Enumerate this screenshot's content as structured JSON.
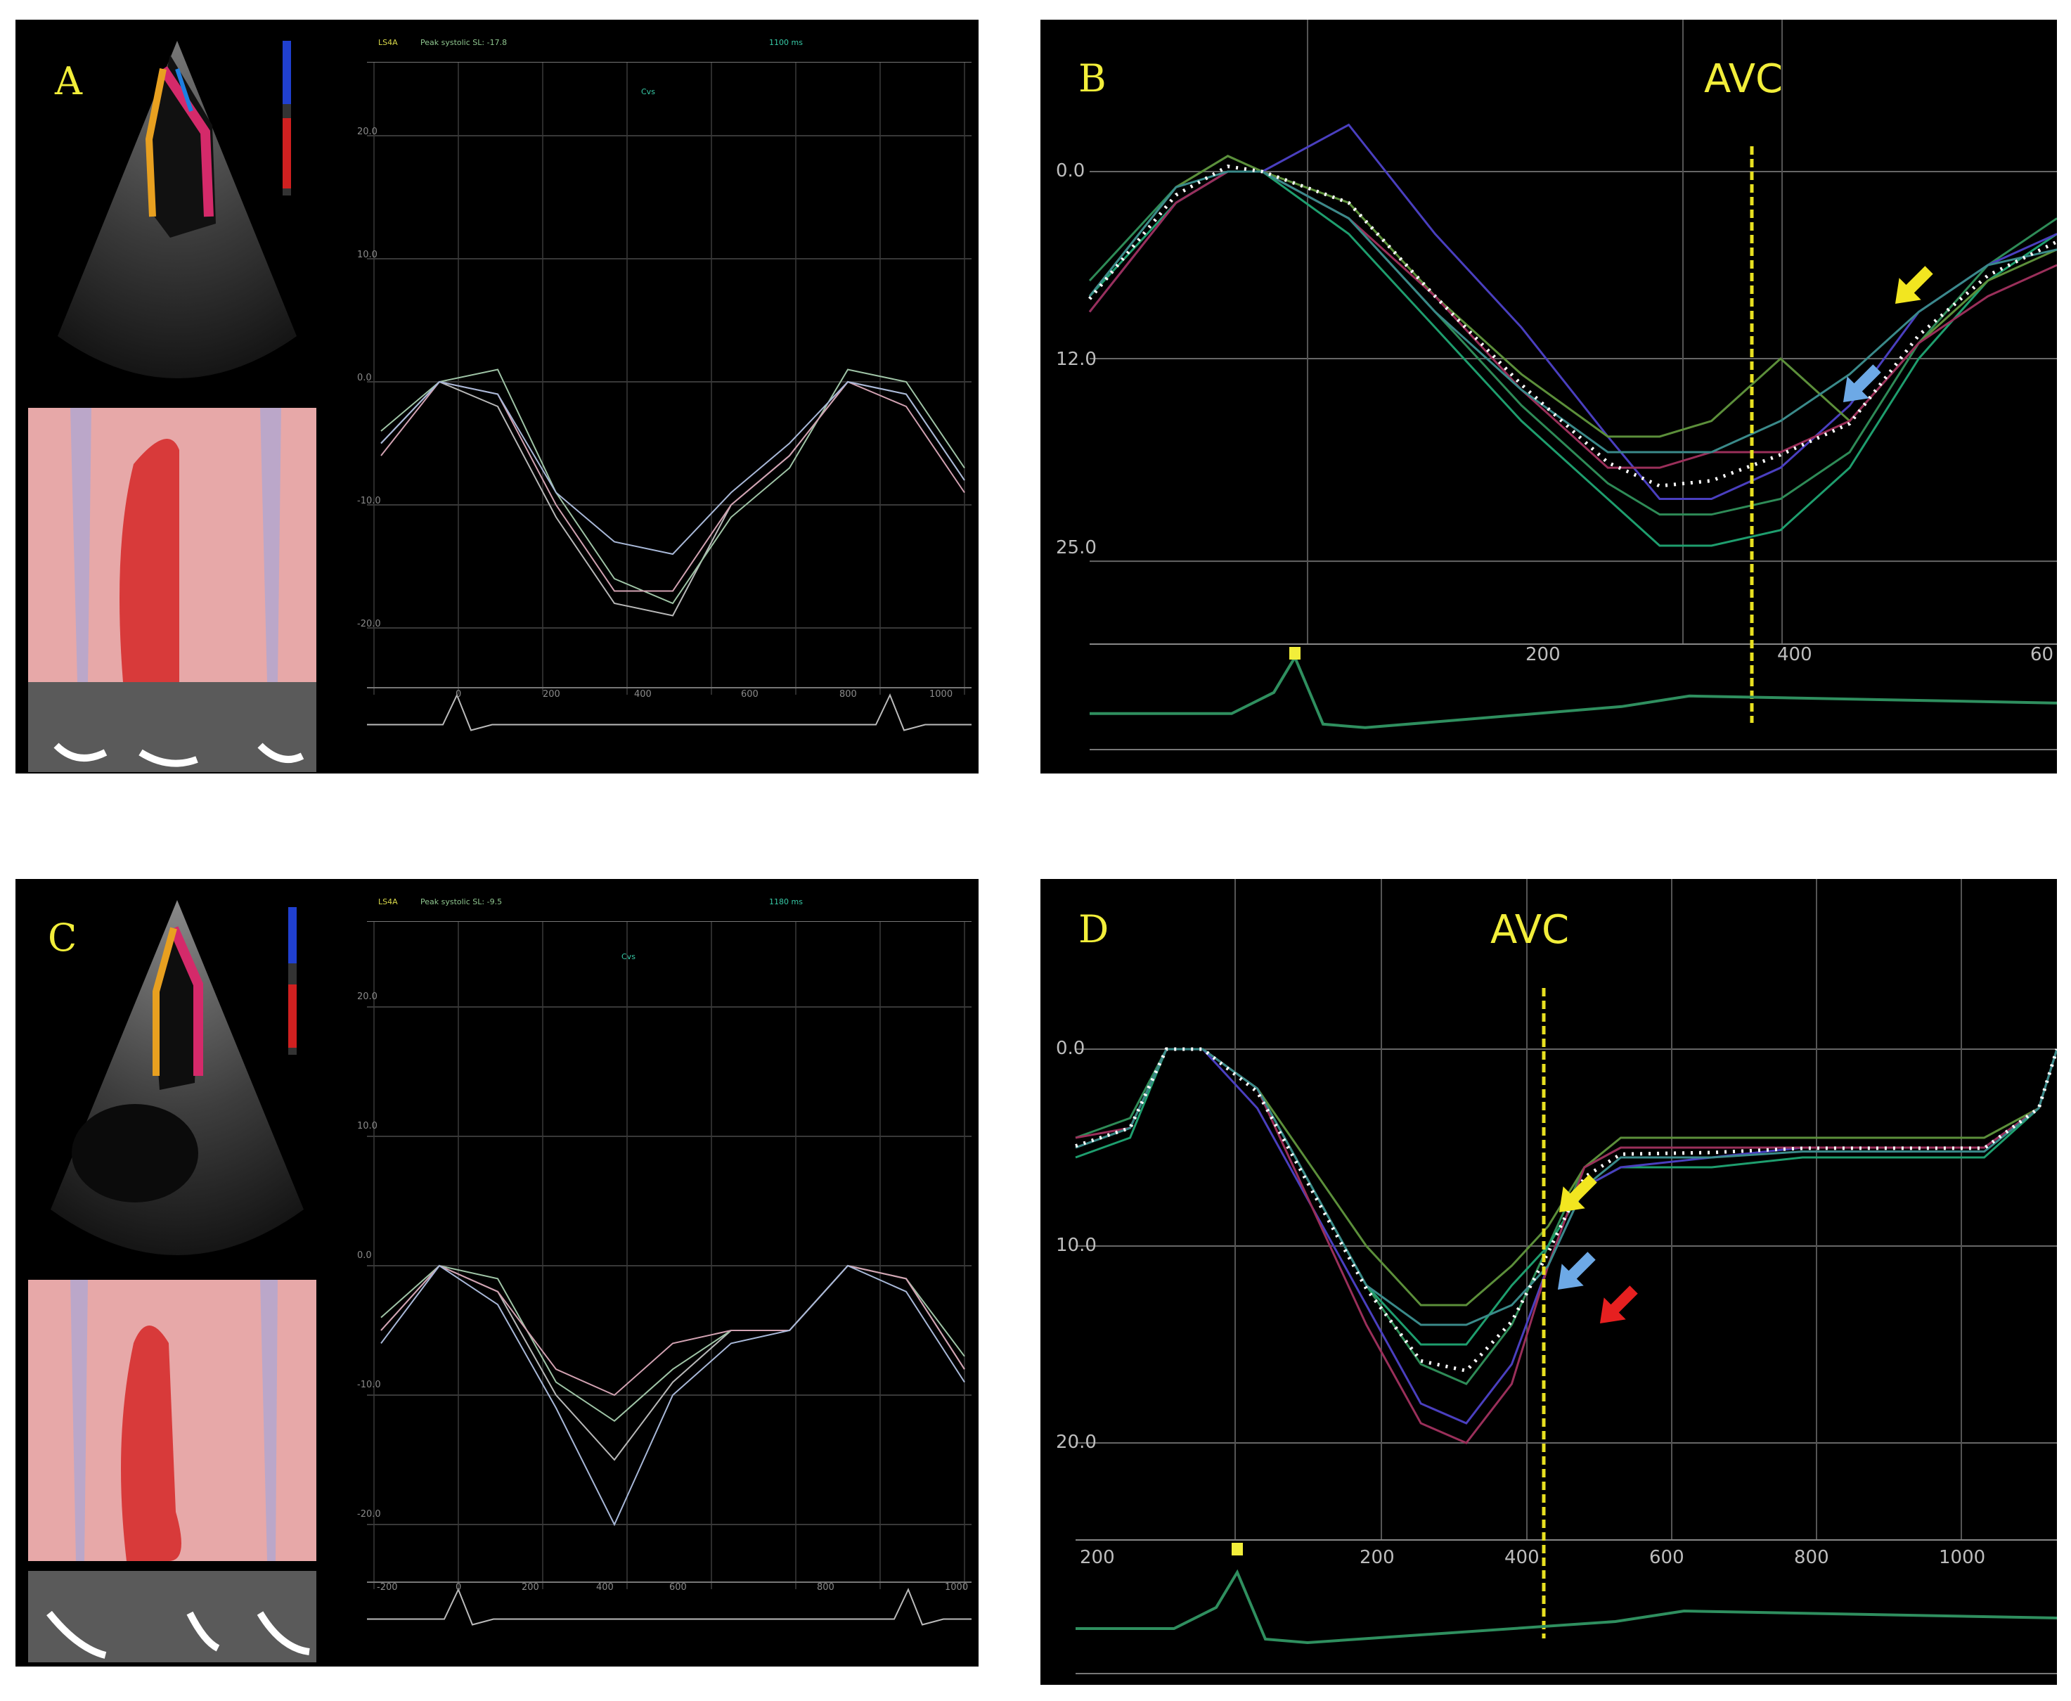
{
  "panels": {
    "A": {
      "label": "A",
      "header": {
        "strain": "LS4A",
        "peak": "Peak systolic SL: -17.8",
        "time": "1100 ms",
        "avc": "Cvs"
      },
      "yticks": [
        "20.0",
        "10.0",
        "0.0",
        "-10.0",
        "-20.0"
      ],
      "xticks": [
        "0",
        "200",
        "400",
        "600",
        "800",
        "1000"
      ]
    },
    "B": {
      "label": "B",
      "avc_label": "AVC",
      "yticks": [
        "0.0",
        "12.0",
        "25.0"
      ],
      "xticks": [
        "200",
        "400",
        "60"
      ]
    },
    "C": {
      "label": "C",
      "header": {
        "strain": "LS4A",
        "peak": "Peak systolic SL: -9.5",
        "time": "1180 ms",
        "avc": "Cvs"
      },
      "yticks": [
        "20.0",
        "10.0",
        "0.0",
        "-10.0",
        "-20.0"
      ],
      "xticks": [
        "-200",
        "0",
        "200",
        "400",
        "600",
        "800",
        "1000"
      ]
    },
    "D": {
      "label": "D",
      "avc_label": "AVC",
      "yticks": [
        "0.0",
        "10.0",
        "20.0"
      ],
      "xticks": [
        "200",
        "200",
        "400",
        "600",
        "800",
        "1000"
      ]
    }
  },
  "colors": {
    "yellow_arrow": "#f2e620",
    "blue_arrow": "#6da9e6",
    "red_arrow": "#e62020",
    "avc_line": "#e8e020",
    "ecg": "#2f8f5f"
  },
  "chart_data": [
    {
      "panel": "B",
      "type": "line",
      "ylabel": "",
      "xlabel": "",
      "y_ticks": [
        0.0,
        12.0,
        25.0
      ],
      "x_ticks": [
        200,
        400
      ],
      "avc_ms": 360,
      "series": [
        {
          "x": [
            0,
            50,
            80,
            100,
            150,
            200,
            250,
            300,
            330,
            360,
            400,
            440,
            480,
            520,
            560
          ],
          "values": [
            7,
            1,
            -1,
            0,
            3,
            9,
            15,
            20,
            22,
            22,
            21,
            18,
            11,
            6,
            3
          ]
        },
        {
          "x": [
            0,
            50,
            80,
            100,
            150,
            200,
            250,
            300,
            330,
            360,
            400,
            440,
            480,
            520,
            560
          ],
          "values": [
            8,
            2,
            0,
            0,
            4,
            10,
            16,
            21,
            24,
            24,
            23,
            19,
            12,
            7,
            4
          ]
        },
        {
          "x": [
            0,
            50,
            80,
            100,
            150,
            200,
            250,
            300,
            330,
            360,
            400,
            440,
            480,
            520,
            560
          ],
          "values": [
            9,
            2,
            0,
            0,
            -3,
            4,
            10,
            17,
            21,
            21,
            19,
            15,
            9,
            6,
            4
          ]
        },
        {
          "x": [
            0,
            50,
            80,
            100,
            150,
            200,
            250,
            300,
            330,
            360,
            400,
            440,
            480,
            520,
            560
          ],
          "values": [
            8,
            1,
            -1,
            0,
            2,
            8,
            13,
            17,
            17,
            16,
            12,
            16,
            11,
            7,
            5
          ]
        },
        {
          "x": [
            0,
            50,
            80,
            100,
            150,
            200,
            250,
            300,
            330,
            360,
            400,
            440,
            480,
            520,
            560
          ],
          "values": [
            9,
            2,
            0,
            0,
            3,
            8,
            14,
            19,
            19,
            18,
            18,
            16,
            11,
            8,
            6
          ]
        },
        {
          "x": [
            0,
            50,
            80,
            100,
            150,
            200,
            250,
            300,
            330,
            360,
            400,
            440,
            480,
            520,
            560
          ],
          "values": [
            8,
            1,
            0,
            0,
            3,
            9,
            14,
            18,
            18,
            18,
            16,
            13,
            9,
            6,
            5
          ]
        }
      ]
    },
    {
      "panel": "D",
      "type": "line",
      "ylabel": "",
      "xlabel": "",
      "y_ticks": [
        0.0,
        10.0,
        20.0
      ],
      "x_ticks": [
        200,
        400,
        600,
        800,
        1000
      ],
      "avc_ms": 430,
      "series": [
        {
          "x": [
            0,
            60,
            100,
            140,
            200,
            260,
            320,
            380,
            430,
            480,
            520,
            560,
            600,
            700,
            800,
            900,
            1000,
            1060,
            1080
          ],
          "values": [
            4.5,
            3.5,
            0,
            0,
            2,
            7,
            12,
            16,
            17,
            14,
            10,
            6,
            5,
            5,
            5,
            5,
            5,
            3,
            0
          ]
        },
        {
          "x": [
            0,
            60,
            100,
            140,
            200,
            260,
            320,
            380,
            430,
            480,
            520,
            560,
            600,
            700,
            800,
            900,
            1000,
            1060,
            1080
          ],
          "values": [
            5.5,
            4.5,
            0,
            0,
            2,
            7,
            12,
            15,
            15,
            12,
            10,
            7,
            6,
            6,
            5.5,
            5.5,
            5.5,
            3,
            0
          ]
        },
        {
          "x": [
            0,
            60,
            100,
            140,
            200,
            260,
            320,
            380,
            430,
            480,
            520,
            560,
            600,
            700,
            800,
            900,
            1000,
            1060,
            1080
          ],
          "values": [
            5,
            4,
            0,
            0,
            3,
            8,
            13,
            18,
            19,
            16,
            11,
            7,
            6,
            5.5,
            5,
            5,
            5,
            3,
            0
          ]
        },
        {
          "x": [
            0,
            60,
            100,
            140,
            200,
            260,
            320,
            380,
            430,
            480,
            520,
            560,
            600,
            700,
            800,
            900,
            1000,
            1060,
            1080
          ],
          "values": [
            5,
            4,
            0,
            0,
            2,
            6,
            10,
            13,
            13,
            11,
            9,
            6,
            4.5,
            4.5,
            4.5,
            4.5,
            4.5,
            3,
            0
          ]
        },
        {
          "x": [
            0,
            60,
            100,
            140,
            200,
            260,
            320,
            380,
            430,
            480,
            520,
            560,
            600,
            700,
            800,
            900,
            1000,
            1060,
            1080
          ],
          "values": [
            4.5,
            4,
            0,
            0,
            2,
            8,
            14,
            19,
            20,
            17,
            11,
            6,
            5,
            5,
            5,
            5,
            5,
            3,
            0
          ]
        },
        {
          "x": [
            0,
            60,
            100,
            140,
            200,
            260,
            320,
            380,
            430,
            480,
            520,
            560,
            600,
            700,
            800,
            900,
            1000,
            1060,
            1080
          ],
          "values": [
            5,
            4,
            0,
            0,
            2,
            7,
            12,
            14,
            14,
            13,
            11,
            7,
            5.5,
            5.5,
            5.2,
            5.2,
            5.2,
            3,
            0
          ]
        }
      ]
    },
    {
      "panel": "A",
      "type": "line",
      "series": [
        {
          "x": [
            0,
            10,
            20,
            30,
            40,
            50,
            60,
            70,
            80,
            90,
            100
          ],
          "values": [
            -5,
            0,
            -2,
            -11,
            -18,
            -19,
            -10,
            -6,
            0,
            -1,
            -8
          ]
        },
        {
          "x": [
            0,
            10,
            20,
            30,
            40,
            50,
            60,
            70,
            80,
            90,
            100
          ],
          "values": [
            -4,
            0,
            1,
            -9,
            -16,
            -18,
            -11,
            -7,
            1,
            0,
            -7
          ]
        },
        {
          "x": [
            0,
            10,
            20,
            30,
            40,
            50,
            60,
            70,
            80,
            90,
            100
          ],
          "values": [
            -6,
            0,
            -1,
            -10,
            -17,
            -17,
            -10,
            -6,
            0,
            -2,
            -9
          ]
        },
        {
          "x": [
            0,
            10,
            20,
            30,
            40,
            50,
            60,
            70,
            80,
            90,
            100
          ],
          "values": [
            -5,
            0,
            -1,
            -9,
            -13,
            -14,
            -9,
            -5,
            0,
            -1,
            -8
          ]
        }
      ]
    },
    {
      "panel": "C",
      "type": "line",
      "series": [
        {
          "x": [
            0,
            10,
            20,
            30,
            40,
            50,
            60,
            70,
            80,
            90,
            100
          ],
          "values": [
            -5,
            0,
            -2,
            -10,
            -15,
            -9,
            -5,
            -5,
            0,
            -1,
            -8
          ]
        },
        {
          "x": [
            0,
            10,
            20,
            30,
            40,
            50,
            60,
            70,
            80,
            90,
            100
          ],
          "values": [
            -4,
            0,
            -1,
            -9,
            -12,
            -8,
            -5,
            -5,
            0,
            -1,
            -7
          ]
        },
        {
          "x": [
            0,
            10,
            20,
            30,
            40,
            50,
            60,
            70,
            80,
            90,
            100
          ],
          "values": [
            -5,
            0,
            -2,
            -8,
            -10,
            -6,
            -5,
            -5,
            0,
            -1,
            -8
          ]
        },
        {
          "x": [
            0,
            10,
            20,
            30,
            40,
            50,
            60,
            70,
            80,
            90,
            100
          ],
          "values": [
            -6,
            0,
            -3,
            -11,
            -20,
            -10,
            -6,
            -5,
            0,
            -2,
            -9
          ]
        }
      ]
    }
  ]
}
